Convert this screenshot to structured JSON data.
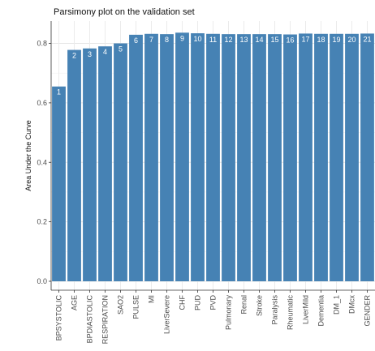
{
  "chart_data": {
    "type": "bar",
    "title": "Parsimony plot on the validation set",
    "xlabel": "",
    "ylabel": "Area Under the Curve",
    "ylim": [
      -0.03,
      0.875
    ],
    "yticks": [
      0.0,
      0.2,
      0.4,
      0.6,
      0.8
    ],
    "ytick_labels": [
      "0.0",
      "0.2",
      "0.4",
      "0.6",
      "0.8"
    ],
    "grid": true,
    "bar_color": "#4682B4",
    "categories": [
      "BPSYSTOLIC",
      "AGE",
      "BPDIASTOLIC",
      "RESPIRATION",
      "SAO2",
      "PULSE",
      "MI",
      "LiverSevere",
      "CHF",
      "PUD",
      "PVD",
      "Pulmonary",
      "Renal",
      "Stroke",
      "Paralysis",
      "Rheumatic",
      "LiverMild",
      "Dementia",
      "DM_1",
      "DMcx",
      "GENDER"
    ],
    "bar_labels": [
      "1",
      "2",
      "3",
      "4",
      "5",
      "6",
      "7",
      "8",
      "9",
      "10",
      "11",
      "12",
      "13",
      "14",
      "15",
      "16",
      "17",
      "18",
      "19",
      "20",
      "21"
    ],
    "values": [
      0.655,
      0.778,
      0.783,
      0.79,
      0.8,
      0.829,
      0.832,
      0.831,
      0.836,
      0.834,
      0.832,
      0.831,
      0.831,
      0.831,
      0.831,
      0.83,
      0.833,
      0.832,
      0.832,
      0.832,
      0.833
    ]
  }
}
